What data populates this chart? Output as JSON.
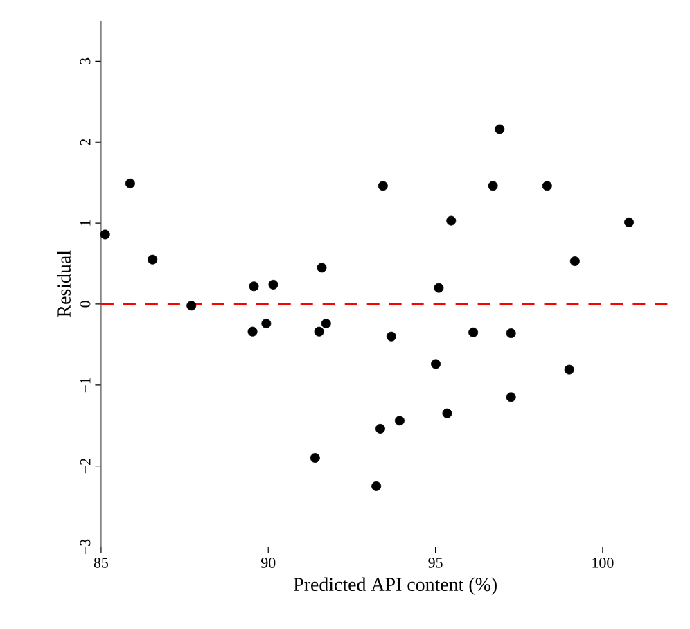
{
  "chart_data": {
    "type": "scatter",
    "xlabel": "Predicted API content (%)",
    "ylabel": "Residual",
    "x": [
      85.12,
      85.87,
      86.54,
      87.7,
      89.57,
      89.53,
      90.15,
      89.94,
      91.6,
      91.52,
      91.73,
      91.4,
      93.23,
      93.43,
      93.35,
      93.93,
      93.68,
      95.1,
      95.01,
      95.35,
      95.47,
      96.13,
      96.72,
      96.92,
      97.26,
      97.26,
      98.34,
      99.0,
      99.17,
      100.79
    ],
    "series": [
      {
        "color": "#000000",
        "values": [
          0.86,
          1.49,
          0.55,
          -0.02,
          0.22,
          -0.34,
          0.24,
          -0.24,
          0.45,
          -0.34,
          -0.24,
          -1.9,
          -2.25,
          1.46,
          -1.54,
          -1.44,
          -0.4,
          0.2,
          -0.74,
          -1.35,
          1.03,
          -0.35,
          1.46,
          2.16,
          -0.36,
          -1.15,
          1.46,
          -0.81,
          0.53,
          1.01
        ]
      }
    ],
    "xlim": [
      85,
      102.6
    ],
    "ylim": [
      -3,
      3.5
    ],
    "xticks": [
      85,
      90,
      95,
      100
    ],
    "yticks": [
      {
        "value": -3,
        "label": "−3"
      },
      {
        "value": -2,
        "label": "−2"
      },
      {
        "value": -1,
        "label": "−1"
      },
      0,
      1,
      2,
      3
    ],
    "ref_lines": [
      {
        "axis": "y",
        "value": 0,
        "color": "#ff0000",
        "line_style": "dashed"
      }
    ],
    "marker": "circle",
    "grid": false
  }
}
